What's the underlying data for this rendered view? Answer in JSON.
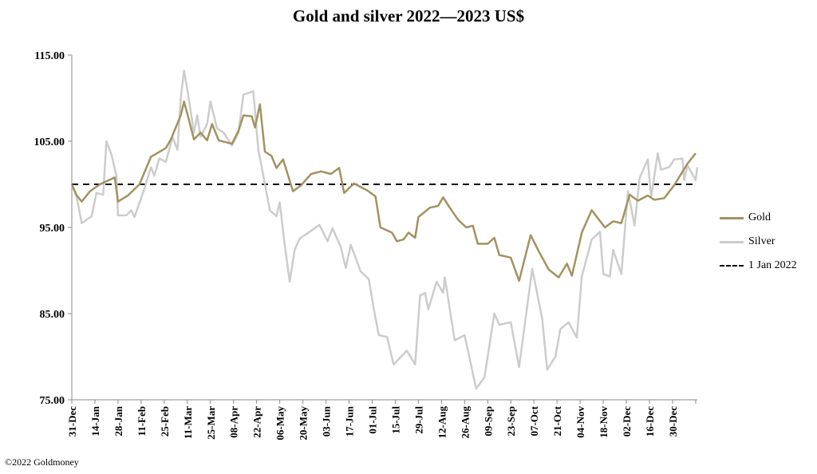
{
  "chart_data": {
    "type": "line",
    "title": "Gold and silver 2022—2023  US$",
    "xlabel": "",
    "ylabel": "",
    "ylim": [
      75,
      115
    ],
    "yticks": [
      "115.00",
      "105.00",
      "95.00",
      "85.00",
      "75.00"
    ],
    "x_unit": "days since 31-Dec",
    "xlim": [
      0,
      379
    ],
    "xtick_labels": [
      "31-Dec",
      "14-Jan",
      "28-Jan",
      "11-Feb",
      "25-Feb",
      "11-Mar",
      "25-Mar",
      "08-Apr",
      "22-Apr",
      "06-May",
      "20-May",
      "03-Jun",
      "17-Jun",
      "01-Jul",
      "15-Jul",
      "29-Jul",
      "12-Aug",
      "26-Aug",
      "09-Sep",
      "23-Sep",
      "07-Oct",
      "21-Oct",
      "04-Nov",
      "18-Nov",
      "02-Dec",
      "16-Dec",
      "30-Dec"
    ],
    "legend_position": "right",
    "series": [
      {
        "name": "Gold",
        "color": "#a39260",
        "points": [
          [
            0,
            100
          ],
          [
            3,
            98.7
          ],
          [
            6,
            98
          ],
          [
            11,
            99.2
          ],
          [
            17,
            100
          ],
          [
            26,
            100.8
          ],
          [
            28,
            98
          ],
          [
            34,
            98.7
          ],
          [
            41,
            100
          ],
          [
            48,
            103.2
          ],
          [
            57,
            104.2
          ],
          [
            60,
            105.2
          ],
          [
            66,
            108
          ],
          [
            68,
            109.6
          ],
          [
            70,
            108.2
          ],
          [
            74,
            105.2
          ],
          [
            78,
            106
          ],
          [
            82,
            105.1
          ],
          [
            85,
            107
          ],
          [
            89,
            105.1
          ],
          [
            97,
            104.7
          ],
          [
            101,
            106.2
          ],
          [
            104,
            108
          ],
          [
            109,
            107.9
          ],
          [
            111,
            106.6
          ],
          [
            114,
            109.3
          ],
          [
            117,
            103.8
          ],
          [
            121,
            103.3
          ],
          [
            124,
            101.9
          ],
          [
            128,
            102.9
          ],
          [
            134,
            99.2
          ],
          [
            139,
            99.9
          ],
          [
            145,
            101.2
          ],
          [
            151,
            101.5
          ],
          [
            157,
            101.2
          ],
          [
            162,
            101.9
          ],
          [
            165,
            99
          ],
          [
            171,
            100.1
          ],
          [
            179,
            99.3
          ],
          [
            184,
            98.6
          ],
          [
            187,
            95
          ],
          [
            194,
            94.4
          ],
          [
            197,
            93.4
          ],
          [
            201,
            93.6
          ],
          [
            204,
            94.4
          ],
          [
            208,
            93.8
          ],
          [
            210,
            96.2
          ],
          [
            217,
            97.3
          ],
          [
            222,
            97.5
          ],
          [
            225,
            98.5
          ],
          [
            229,
            97.3
          ],
          [
            234,
            95.9
          ],
          [
            239,
            95
          ],
          [
            243,
            95.2
          ],
          [
            246,
            93.1
          ],
          [
            252,
            93.1
          ],
          [
            256,
            93.8
          ],
          [
            259,
            91.8
          ],
          [
            266,
            91.5
          ],
          [
            271,
            88.8
          ],
          [
            278,
            94.1
          ],
          [
            283,
            92.2
          ],
          [
            289,
            90.1
          ],
          [
            295,
            89.2
          ],
          [
            300,
            90.8
          ],
          [
            303,
            89.4
          ],
          [
            309,
            94.4
          ],
          [
            315,
            97
          ],
          [
            323,
            95
          ],
          [
            328,
            95.7
          ],
          [
            333,
            95.5
          ],
          [
            338,
            98.8
          ],
          [
            343,
            98.1
          ],
          [
            349,
            98.7
          ],
          [
            353,
            98.2
          ],
          [
            359,
            98.4
          ],
          [
            365,
            99.9
          ],
          [
            373,
            102.4
          ],
          [
            378,
            103.6
          ]
        ]
      },
      {
        "name": "Silver",
        "color": "#cccccc",
        "points": [
          [
            0,
            100
          ],
          [
            3,
            98.5
          ],
          [
            6,
            95.5
          ],
          [
            12,
            96.3
          ],
          [
            15,
            99
          ],
          [
            19,
            98.8
          ],
          [
            21,
            105
          ],
          [
            24,
            103.5
          ],
          [
            27,
            101
          ],
          [
            28,
            96.4
          ],
          [
            33,
            96.4
          ],
          [
            36,
            97
          ],
          [
            38,
            96.2
          ],
          [
            44,
            99.5
          ],
          [
            48,
            102
          ],
          [
            50,
            101
          ],
          [
            53,
            103
          ],
          [
            57,
            102.6
          ],
          [
            61,
            105.5
          ],
          [
            64,
            104
          ],
          [
            66,
            110
          ],
          [
            68,
            113.2
          ],
          [
            70,
            111
          ],
          [
            74,
            106
          ],
          [
            76,
            108
          ],
          [
            78,
            105.5
          ],
          [
            82,
            107
          ],
          [
            84,
            109.6
          ],
          [
            88,
            106.5
          ],
          [
            92,
            106
          ],
          [
            97,
            104.5
          ],
          [
            101,
            106
          ],
          [
            104,
            110.4
          ],
          [
            110,
            110.8
          ],
          [
            113,
            104
          ],
          [
            116,
            101
          ],
          [
            120,
            97
          ],
          [
            124,
            96.3
          ],
          [
            126,
            97.9
          ],
          [
            129,
            93
          ],
          [
            132,
            88.7
          ],
          [
            135,
            92.4
          ],
          [
            138,
            93.7
          ],
          [
            145,
            94.6
          ],
          [
            150,
            95.3
          ],
          [
            155,
            93.4
          ],
          [
            158,
            94.9
          ],
          [
            163,
            92.7
          ],
          [
            166,
            90.3
          ],
          [
            169,
            93
          ],
          [
            175,
            89.9
          ],
          [
            180,
            89
          ],
          [
            183,
            85.5
          ],
          [
            186,
            82.5
          ],
          [
            191,
            82.3
          ],
          [
            195,
            79.1
          ],
          [
            203,
            80.7
          ],
          [
            208,
            79.1
          ],
          [
            211,
            87.1
          ],
          [
            214,
            87.4
          ],
          [
            216,
            85.5
          ],
          [
            221,
            88.7
          ],
          [
            225,
            87.4
          ],
          [
            226,
            89.2
          ],
          [
            232,
            81.9
          ],
          [
            238,
            82.5
          ],
          [
            245,
            76.3
          ],
          [
            250,
            77.6
          ],
          [
            256,
            85
          ],
          [
            259,
            83.7
          ],
          [
            266,
            84
          ],
          [
            271,
            78.8
          ],
          [
            279,
            90.2
          ],
          [
            285,
            84.4
          ],
          [
            288,
            78.5
          ],
          [
            293,
            80
          ],
          [
            296,
            83.2
          ],
          [
            301,
            84
          ],
          [
            306,
            82.2
          ],
          [
            309,
            89.3
          ],
          [
            315,
            93.6
          ],
          [
            320,
            94.5
          ],
          [
            322,
            89.6
          ],
          [
            326,
            89.3
          ],
          [
            328,
            92.4
          ],
          [
            333,
            89.6
          ],
          [
            337,
            99.2
          ],
          [
            341,
            95.2
          ],
          [
            344,
            100.7
          ],
          [
            349,
            102.9
          ],
          [
            351,
            98.5
          ],
          [
            355,
            103.6
          ],
          [
            357,
            101.7
          ],
          [
            362,
            102
          ],
          [
            365,
            102.9
          ],
          [
            370,
            103
          ],
          [
            371,
            100.5
          ],
          [
            373,
            102.2
          ],
          [
            378,
            100.5
          ],
          [
            379,
            102
          ]
        ]
      },
      {
        "name": "1 Jan 2022",
        "color": "#000000",
        "dashed": true,
        "points": [
          [
            0,
            100
          ],
          [
            379,
            100
          ]
        ]
      }
    ]
  },
  "footer": "©2022 Goldmoney"
}
